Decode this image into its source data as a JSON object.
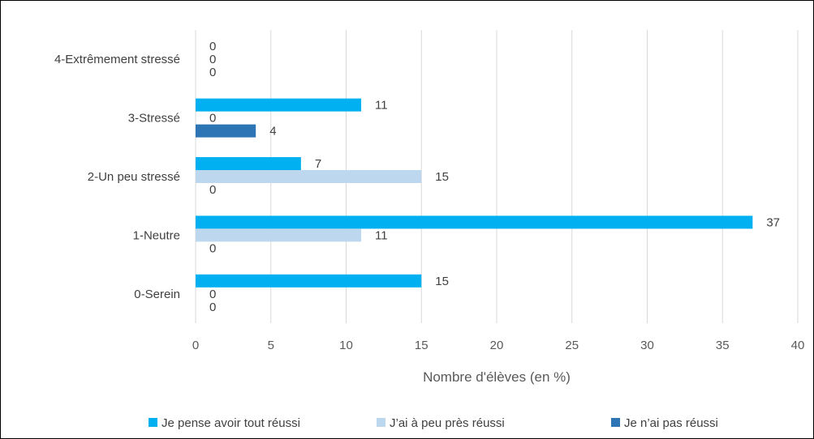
{
  "chart_data": {
    "type": "bar",
    "orientation": "horizontal",
    "categories": [
      "0-Serein",
      "1-Neutre",
      "2-Un peu stressé",
      "3-Stressé",
      "4-Extrêmement stressé"
    ],
    "series": [
      {
        "name": "Je pense avoir tout réussi",
        "values": [
          15,
          37,
          7,
          11,
          0
        ],
        "color": "#00b0f0"
      },
      {
        "name": "J’ai à peu près réussi",
        "values": [
          0,
          11,
          15,
          0,
          0
        ],
        "color": "#bdd7ee"
      },
      {
        "name": "Je n’ai pas réussi",
        "values": [
          0,
          0,
          0,
          4,
          0
        ],
        "color": "#2e75b6"
      }
    ],
    "xlabel": "Nombre d'élèves (en %)",
    "ylabel": "",
    "xlim": [
      0,
      40
    ],
    "xticks": [
      0,
      5,
      10,
      15,
      20,
      25,
      30,
      35,
      40
    ],
    "grid": "vertical",
    "legend_position": "bottom",
    "data_labels": true
  }
}
